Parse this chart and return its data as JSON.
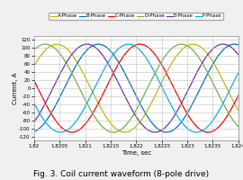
{
  "title": "Fig. 3. Coil current waveform (8-pole drive)",
  "xlabel": "Time, sec",
  "ylabel": "Current, A",
  "xlim": [
    1.82,
    1.824
  ],
  "ylim": [
    -128,
    128
  ],
  "yticks": [
    -120,
    -100,
    -80,
    -60,
    -40,
    -20,
    0,
    20,
    40,
    60,
    80,
    100,
    120
  ],
  "xticks": [
    1.82,
    1.8205,
    1.821,
    1.8215,
    1.822,
    1.8225,
    1.823,
    1.8235,
    1.824
  ],
  "xtick_labels": [
    "1.82",
    "1.8205",
    "1.821",
    "1.8215",
    "1.822",
    "1.8225",
    "1.823",
    "1.8235",
    "1.824"
  ],
  "amplitude": 108,
  "frequency": 375,
  "phases": {
    "A-Phase": {
      "color": "#c8b400",
      "phase_deg": 210
    },
    "B-Phase": {
      "color": "#0070c0",
      "phase_deg": 100
    },
    "C-Phase": {
      "color": "#ff0000",
      "phase_deg": -10
    },
    "D-Phase": {
      "color": "#70ad47",
      "phase_deg": -120
    },
    "E-Phase": {
      "color": "#7030a0",
      "phase_deg": -230
    },
    "F-Phase": {
      "color": "#00b0f0",
      "phase_deg": -340
    }
  },
  "background_color": "#f0f0f0",
  "plot_bg_color": "#ffffff",
  "grid_color": "#c0c0c0",
  "tick_fontsize": 4.0,
  "label_fontsize": 5.0,
  "legend_fontsize": 4.0,
  "linewidth": 0.9
}
